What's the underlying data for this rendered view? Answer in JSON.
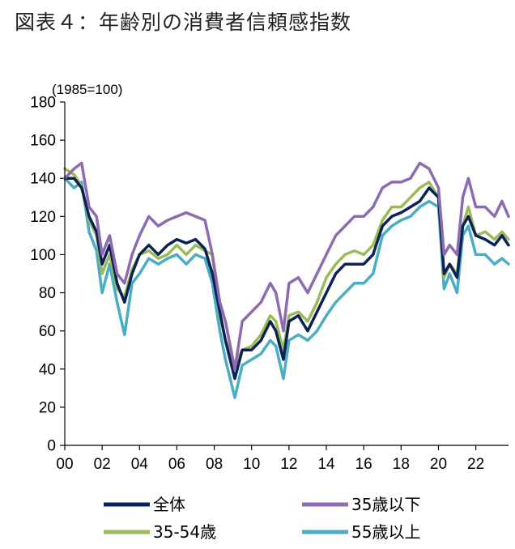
{
  "page": {
    "title": "図表４：年齢別の消費者信頼感指数"
  },
  "chart_data": {
    "type": "line",
    "title": "図表４：年齢別の消費者信頼感指数",
    "unit_label": "(1985=100)",
    "xlabel": "",
    "ylabel": "",
    "x_tick_labels": [
      "00",
      "02",
      "04",
      "06",
      "08",
      "10",
      "12",
      "14",
      "16",
      "18",
      "20",
      "22"
    ],
    "x_tick_years": [
      2000,
      2002,
      2004,
      2006,
      2008,
      2010,
      2012,
      2014,
      2016,
      2018,
      2020,
      2022
    ],
    "xlim": [
      2000,
      2023.75
    ],
    "y_ticks": [
      0,
      20,
      40,
      60,
      80,
      100,
      120,
      140,
      160,
      180
    ],
    "ylim": [
      0,
      180
    ],
    "grid": false,
    "legend_position": "bottom",
    "series": [
      {
        "name": "全体",
        "color": "#0b2257",
        "x": [
          2000,
          2000.5,
          2000.9,
          2001.3,
          2001.7,
          2002,
          2002.4,
          2002.8,
          2003.2,
          2003.6,
          2004,
          2004.5,
          2005,
          2005.5,
          2006,
          2006.5,
          2007,
          2007.5,
          2007.9,
          2008.3,
          2008.6,
          2009.1,
          2009.5,
          2010,
          2010.5,
          2011,
          2011.3,
          2011.7,
          2012,
          2012.5,
          2013,
          2013.5,
          2014,
          2014.5,
          2015,
          2015.5,
          2016,
          2016.5,
          2017,
          2017.5,
          2018,
          2018.5,
          2019,
          2019.5,
          2020,
          2020.3,
          2020.6,
          2021,
          2021.3,
          2021.6,
          2022,
          2022.5,
          2023,
          2023.4,
          2023.75
        ],
        "y": [
          140,
          140,
          135,
          120,
          112,
          95,
          105,
          85,
          75,
          90,
          100,
          105,
          100,
          105,
          108,
          106,
          108,
          103,
          90,
          70,
          55,
          35,
          50,
          50,
          55,
          65,
          60,
          45,
          65,
          68,
          60,
          70,
          80,
          90,
          95,
          95,
          95,
          100,
          115,
          120,
          122,
          125,
          128,
          135,
          130,
          90,
          95,
          88,
          115,
          120,
          110,
          108,
          105,
          110,
          105
        ]
      },
      {
        "name": "35歳以下",
        "color": "#8c6bb1",
        "x": [
          2000,
          2000.5,
          2000.9,
          2001.3,
          2001.7,
          2002,
          2002.4,
          2002.8,
          2003.2,
          2003.6,
          2004,
          2004.5,
          2005,
          2005.5,
          2006,
          2006.5,
          2007,
          2007.5,
          2007.9,
          2008.3,
          2008.6,
          2009.1,
          2009.5,
          2010,
          2010.5,
          2011,
          2011.3,
          2011.7,
          2012,
          2012.5,
          2013,
          2013.5,
          2014,
          2014.5,
          2015,
          2015.5,
          2016,
          2016.5,
          2017,
          2017.5,
          2018,
          2018.5,
          2019,
          2019.5,
          2020,
          2020.3,
          2020.6,
          2021,
          2021.3,
          2021.6,
          2022,
          2022.5,
          2023,
          2023.4,
          2023.75
        ],
        "y": [
          140,
          145,
          148,
          125,
          120,
          100,
          110,
          90,
          85,
          100,
          110,
          120,
          115,
          118,
          120,
          122,
          120,
          118,
          100,
          75,
          65,
          40,
          65,
          70,
          75,
          85,
          80,
          60,
          85,
          88,
          80,
          90,
          100,
          110,
          115,
          120,
          120,
          125,
          135,
          138,
          138,
          140,
          148,
          145,
          135,
          100,
          105,
          100,
          130,
          140,
          125,
          125,
          120,
          128,
          120
        ]
      },
      {
        "name": "35-54歳",
        "color": "#9bbb59",
        "x": [
          2000,
          2000.5,
          2000.9,
          2001.3,
          2001.7,
          2002,
          2002.4,
          2002.8,
          2003.2,
          2003.6,
          2004,
          2004.5,
          2005,
          2005.5,
          2006,
          2006.5,
          2007,
          2007.5,
          2007.9,
          2008.3,
          2008.6,
          2009.1,
          2009.5,
          2010,
          2010.5,
          2011,
          2011.3,
          2011.7,
          2012,
          2012.5,
          2013,
          2013.5,
          2014,
          2014.5,
          2015,
          2015.5,
          2016,
          2016.5,
          2017,
          2017.5,
          2018,
          2018.5,
          2019,
          2019.5,
          2020,
          2020.3,
          2020.6,
          2021,
          2021.3,
          2021.6,
          2022,
          2022.5,
          2023,
          2023.4,
          2023.75
        ],
        "y": [
          145,
          142,
          136,
          118,
          110,
          90,
          100,
          82,
          78,
          92,
          100,
          102,
          98,
          100,
          105,
          100,
          105,
          102,
          100,
          68,
          55,
          42,
          50,
          52,
          58,
          68,
          65,
          50,
          68,
          70,
          65,
          75,
          88,
          95,
          100,
          102,
          100,
          105,
          118,
          125,
          125,
          130,
          135,
          138,
          130,
          88,
          95,
          90,
          115,
          125,
          110,
          112,
          108,
          112,
          108
        ]
      },
      {
        "name": "55歳以上",
        "color": "#4bacc6",
        "x": [
          2000,
          2000.5,
          2000.9,
          2001.3,
          2001.7,
          2002,
          2002.4,
          2002.8,
          2003.2,
          2003.6,
          2004,
          2004.5,
          2005,
          2005.5,
          2006,
          2006.5,
          2007,
          2007.5,
          2007.9,
          2008.3,
          2008.6,
          2009.1,
          2009.5,
          2010,
          2010.5,
          2011,
          2011.3,
          2011.7,
          2012,
          2012.5,
          2013,
          2013.5,
          2014,
          2014.5,
          2015,
          2015.5,
          2016,
          2016.5,
          2017,
          2017.5,
          2018,
          2018.5,
          2019,
          2019.5,
          2020,
          2020.3,
          2020.6,
          2021,
          2021.3,
          2021.6,
          2022,
          2022.5,
          2023,
          2023.4,
          2023.75
        ],
        "y": [
          140,
          135,
          138,
          112,
          102,
          80,
          95,
          75,
          58,
          85,
          90,
          98,
          95,
          98,
          100,
          95,
          100,
          98,
          85,
          60,
          45,
          25,
          42,
          45,
          48,
          55,
          52,
          35,
          55,
          58,
          55,
          60,
          68,
          75,
          80,
          85,
          85,
          90,
          110,
          115,
          118,
          120,
          125,
          128,
          125,
          82,
          90,
          80,
          110,
          115,
          100,
          100,
          95,
          98,
          95
        ]
      }
    ]
  }
}
